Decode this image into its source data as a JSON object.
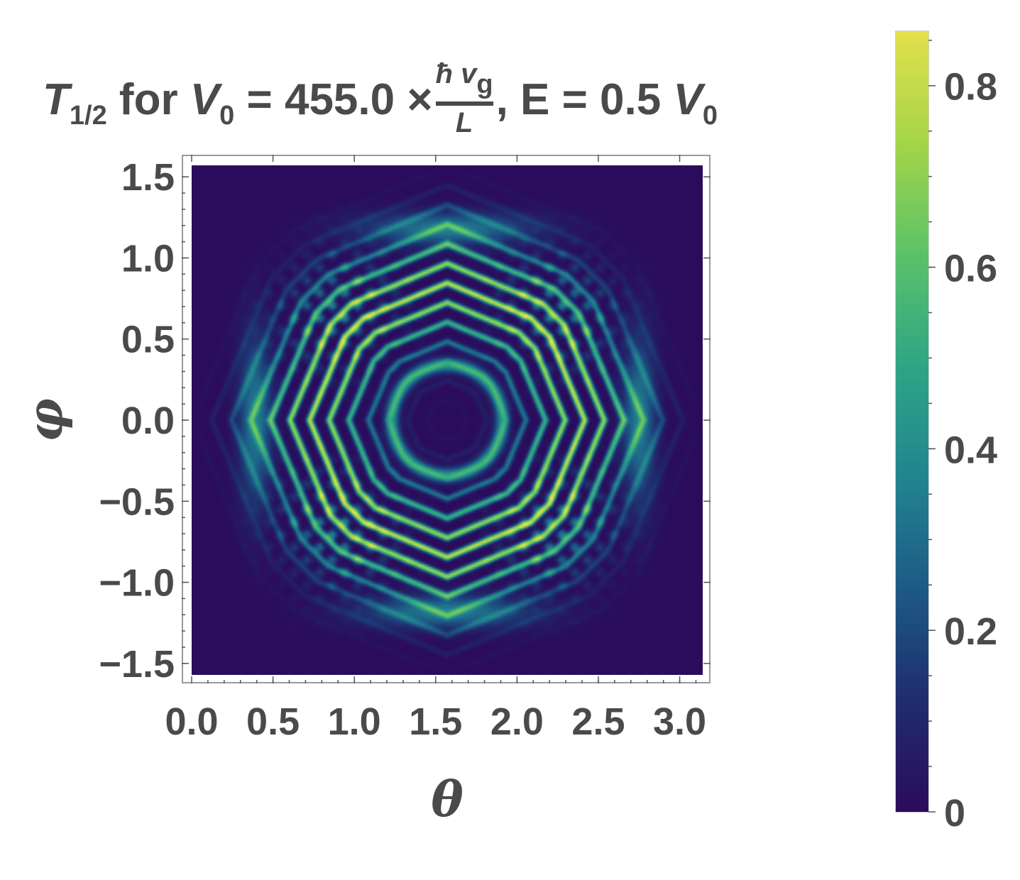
{
  "title": {
    "T": "T",
    "T_sub": "1/2",
    "for": " for ",
    "V": "V",
    "V_sub": "0",
    "eq_value": " = 455.0 ×",
    "frac_num": "ħ v",
    "frac_num_sub": "g",
    "frac_den": "L",
    "energy": ", E = 0.5 ",
    "V2": "V",
    "V2_sub": "0"
  },
  "chart_data": {
    "type": "heatmap",
    "xlabel": "θ",
    "ylabel": "φ",
    "xlim": [
      0,
      3.1416
    ],
    "ylim": [
      -1.5708,
      1.5708
    ],
    "x_ticks": [
      "0.0",
      "0.5",
      "1.0",
      "1.5",
      "2.0",
      "2.5",
      "3.0"
    ],
    "x_tick_values": [
      0,
      0.5,
      1.0,
      1.5,
      2.0,
      2.5,
      3.0
    ],
    "y_ticks": [
      "1.5",
      "1.0",
      "0.5",
      "0.0",
      "−0.5",
      "−1.0",
      "−1.5"
    ],
    "y_tick_values": [
      1.5,
      1.0,
      0.5,
      0.0,
      -0.5,
      -1.0,
      -1.5
    ],
    "colorbar": {
      "min": 0,
      "max": 0.86,
      "ticks": [
        "0.8",
        "0.6",
        "0.4",
        "0.2",
        "0"
      ],
      "tick_values": [
        0.8,
        0.6,
        0.4,
        0.2,
        0
      ]
    },
    "colormap": [
      "#2b0c5c",
      "#1f2d6e",
      "#1d5a86",
      "#22858f",
      "#2ea585",
      "#5bc26a",
      "#a4d548",
      "#e3e04b"
    ],
    "pattern": {
      "center": [
        1.5708,
        0.0
      ],
      "feature": "concentric ring / octagonal interference fringes, transmission near zero at center and edges, peak ~0.86 along fringes near phi = ±0.6 and theta ≈ 0.75, 2.4"
    }
  }
}
